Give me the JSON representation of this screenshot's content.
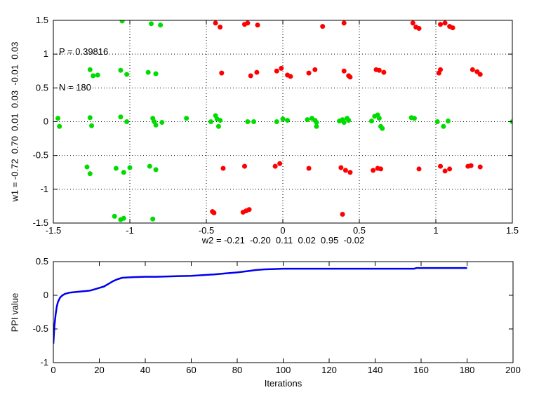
{
  "figure": {
    "background_color": "#ffffff",
    "axes_color": "#000000",
    "description": "MATLAB-style figure with scatter subplot (weights w1 vs w2 projections) and PPI value convergence line subplot"
  },
  "chart_data": [
    {
      "type": "scatter",
      "title": "",
      "xlabel": "w2 = -0.21  -0.20  0.11  0.02  0.95  -0.02",
      "ylabel": "w1 = -0.72  0.70  0.01  0.03  -0.01  0.03",
      "xlim": [
        -1.5,
        1.5
      ],
      "ylim": [
        -1.5,
        1.5
      ],
      "xticks": [
        -1.5,
        -1,
        -0.5,
        0,
        0.5,
        1,
        1.5
      ],
      "yticks": [
        -1.5,
        -1,
        -0.5,
        0,
        0.5,
        1,
        1.5
      ],
      "grid": true,
      "legend_position": "none",
      "annotation": {
        "line1": "P = 0.39816",
        "line2": "N = 180"
      },
      "series": [
        {
          "name": "class-green",
          "color": "#00dc00",
          "marker": "dot",
          "points": [
            [
              -1.05,
              1.49
            ],
            [
              -0.86,
              1.45
            ],
            [
              -0.8,
              1.43
            ],
            [
              -1.26,
              0.77
            ],
            [
              -1.24,
              0.68
            ],
            [
              -1.21,
              0.69
            ],
            [
              -1.06,
              0.76
            ],
            [
              -1.02,
              0.7
            ],
            [
              -0.88,
              0.73
            ],
            [
              -0.83,
              0.71
            ],
            [
              -1.47,
              0.05
            ],
            [
              -1.46,
              -0.07
            ],
            [
              -1.26,
              0.06
            ],
            [
              -1.25,
              -0.06
            ],
            [
              -1.06,
              0.07
            ],
            [
              -1.02,
              0.0
            ],
            [
              -0.85,
              0.05
            ],
            [
              -0.84,
              0.0
            ],
            [
              -0.83,
              -0.05
            ],
            [
              -0.79,
              -0.01
            ],
            [
              -0.63,
              0.05
            ],
            [
              -0.47,
              0.0
            ],
            [
              -0.44,
              0.09
            ],
            [
              -0.43,
              0.04
            ],
            [
              -0.42,
              -0.07
            ],
            [
              -0.41,
              0.02
            ],
            [
              -0.23,
              0.0
            ],
            [
              -0.19,
              0.0
            ],
            [
              -0.04,
              0.0
            ],
            [
              0.0,
              0.04
            ],
            [
              0.03,
              0.02
            ],
            [
              0.16,
              0.03
            ],
            [
              0.19,
              0.05
            ],
            [
              0.21,
              0.02
            ],
            [
              0.22,
              -0.01
            ],
            [
              0.22,
              -0.07
            ],
            [
              0.37,
              0.01
            ],
            [
              0.39,
              0.03
            ],
            [
              0.4,
              -0.01
            ],
            [
              0.42,
              0.05
            ],
            [
              0.43,
              0.02
            ],
            [
              0.58,
              0.01
            ],
            [
              0.6,
              0.08
            ],
            [
              0.62,
              0.1
            ],
            [
              0.63,
              0.05
            ],
            [
              0.64,
              -0.07
            ],
            [
              0.65,
              -0.1
            ],
            [
              0.84,
              0.06
            ],
            [
              0.86,
              0.05
            ],
            [
              1.01,
              0.0
            ],
            [
              1.05,
              -0.07
            ],
            [
              1.08,
              0.01
            ],
            [
              1.5,
              0.0
            ],
            [
              -1.28,
              -0.67
            ],
            [
              -1.26,
              -0.77
            ],
            [
              -1.09,
              -0.69
            ],
            [
              -1.04,
              -0.75
            ],
            [
              -1.0,
              -0.68
            ],
            [
              -0.87,
              -0.66
            ],
            [
              -0.83,
              -0.71
            ],
            [
              -1.1,
              -1.4
            ],
            [
              -1.06,
              -1.45
            ],
            [
              -1.04,
              -1.43
            ],
            [
              -0.85,
              -1.44
            ]
          ]
        },
        {
          "name": "class-red",
          "color": "#ff0000",
          "marker": "dot",
          "points": [
            [
              -0.44,
              1.46
            ],
            [
              -0.41,
              1.4
            ],
            [
              -0.25,
              1.44
            ],
            [
              -0.23,
              1.46
            ],
            [
              -0.165,
              1.43
            ],
            [
              0.26,
              1.41
            ],
            [
              0.4,
              1.46
            ],
            [
              0.85,
              1.46
            ],
            [
              0.87,
              1.4
            ],
            [
              0.89,
              1.38
            ],
            [
              1.03,
              1.44
            ],
            [
              1.06,
              1.46
            ],
            [
              1.09,
              1.41
            ],
            [
              1.11,
              1.39
            ],
            [
              -0.4,
              0.72
            ],
            [
              -0.21,
              0.68
            ],
            [
              -0.17,
              0.73
            ],
            [
              -0.04,
              0.75
            ],
            [
              -0.01,
              0.79
            ],
            [
              0.03,
              0.69
            ],
            [
              0.05,
              0.67
            ],
            [
              0.17,
              0.72
            ],
            [
              0.21,
              0.77
            ],
            [
              0.4,
              0.75
            ],
            [
              0.43,
              0.68
            ],
            [
              0.44,
              0.66
            ],
            [
              0.61,
              0.77
            ],
            [
              0.63,
              0.76
            ],
            [
              0.66,
              0.73
            ],
            [
              1.02,
              0.72
            ],
            [
              1.03,
              0.77
            ],
            [
              1.24,
              0.77
            ],
            [
              1.27,
              0.74
            ],
            [
              1.29,
              0.7
            ],
            [
              -0.39,
              -0.69
            ],
            [
              -0.25,
              -0.66
            ],
            [
              -0.05,
              -0.66
            ],
            [
              -0.02,
              -0.62
            ],
            [
              0.17,
              -0.69
            ],
            [
              0.38,
              -0.68
            ],
            [
              0.41,
              -0.72
            ],
            [
              0.44,
              -0.75
            ],
            [
              0.59,
              -0.72
            ],
            [
              0.62,
              -0.69
            ],
            [
              0.64,
              -0.7
            ],
            [
              0.89,
              -0.7
            ],
            [
              1.03,
              -0.66
            ],
            [
              1.06,
              -0.73
            ],
            [
              1.09,
              -0.7
            ],
            [
              1.21,
              -0.66
            ],
            [
              1.23,
              -0.65
            ],
            [
              1.29,
              -0.67
            ],
            [
              -0.46,
              -1.33
            ],
            [
              -0.45,
              -1.35
            ],
            [
              -0.26,
              -1.34
            ],
            [
              -0.24,
              -1.32
            ],
            [
              -0.22,
              -1.3
            ],
            [
              0.39,
              -1.37
            ]
          ]
        }
      ]
    },
    {
      "type": "line",
      "title": "",
      "xlabel": "Iterations",
      "ylabel": "PPI value",
      "xlim": [
        0,
        200
      ],
      "ylim": [
        -1,
        0.5
      ],
      "xticks": [
        0,
        20,
        40,
        60,
        80,
        100,
        120,
        140,
        160,
        180,
        200
      ],
      "yticks": [
        -1,
        -0.5,
        0,
        0.5
      ],
      "grid": false,
      "legend_position": "none",
      "series": [
        {
          "name": "ppi-value",
          "color": "#0000ee",
          "points": [
            [
              0,
              -0.72
            ],
            [
              0.5,
              -0.45
            ],
            [
              1,
              -0.28
            ],
            [
              1.5,
              -0.17
            ],
            [
              2,
              -0.1
            ],
            [
              3,
              -0.03
            ],
            [
              4,
              0.0
            ],
            [
              5,
              0.02
            ],
            [
              7,
              0.04
            ],
            [
              10,
              0.05
            ],
            [
              13,
              0.06
            ],
            [
              16,
              0.07
            ],
            [
              18,
              0.09
            ],
            [
              20,
              0.11
            ],
            [
              22,
              0.13
            ],
            [
              24,
              0.17
            ],
            [
              26,
              0.21
            ],
            [
              28,
              0.24
            ],
            [
              30,
              0.26
            ],
            [
              32,
              0.265
            ],
            [
              35,
              0.27
            ],
            [
              40,
              0.275
            ],
            [
              45,
              0.275
            ],
            [
              50,
              0.28
            ],
            [
              55,
              0.285
            ],
            [
              60,
              0.29
            ],
            [
              65,
              0.3
            ],
            [
              70,
              0.31
            ],
            [
              75,
              0.325
            ],
            [
              80,
              0.34
            ],
            [
              85,
              0.36
            ],
            [
              88,
              0.375
            ],
            [
              92,
              0.385
            ],
            [
              96,
              0.39
            ],
            [
              100,
              0.395
            ],
            [
              110,
              0.395
            ],
            [
              120,
              0.395
            ],
            [
              130,
              0.395
            ],
            [
              140,
              0.395
            ],
            [
              150,
              0.395
            ],
            [
              157,
              0.395
            ],
            [
              158,
              0.405
            ],
            [
              170,
              0.405
            ],
            [
              180,
              0.405
            ]
          ]
        }
      ]
    }
  ]
}
